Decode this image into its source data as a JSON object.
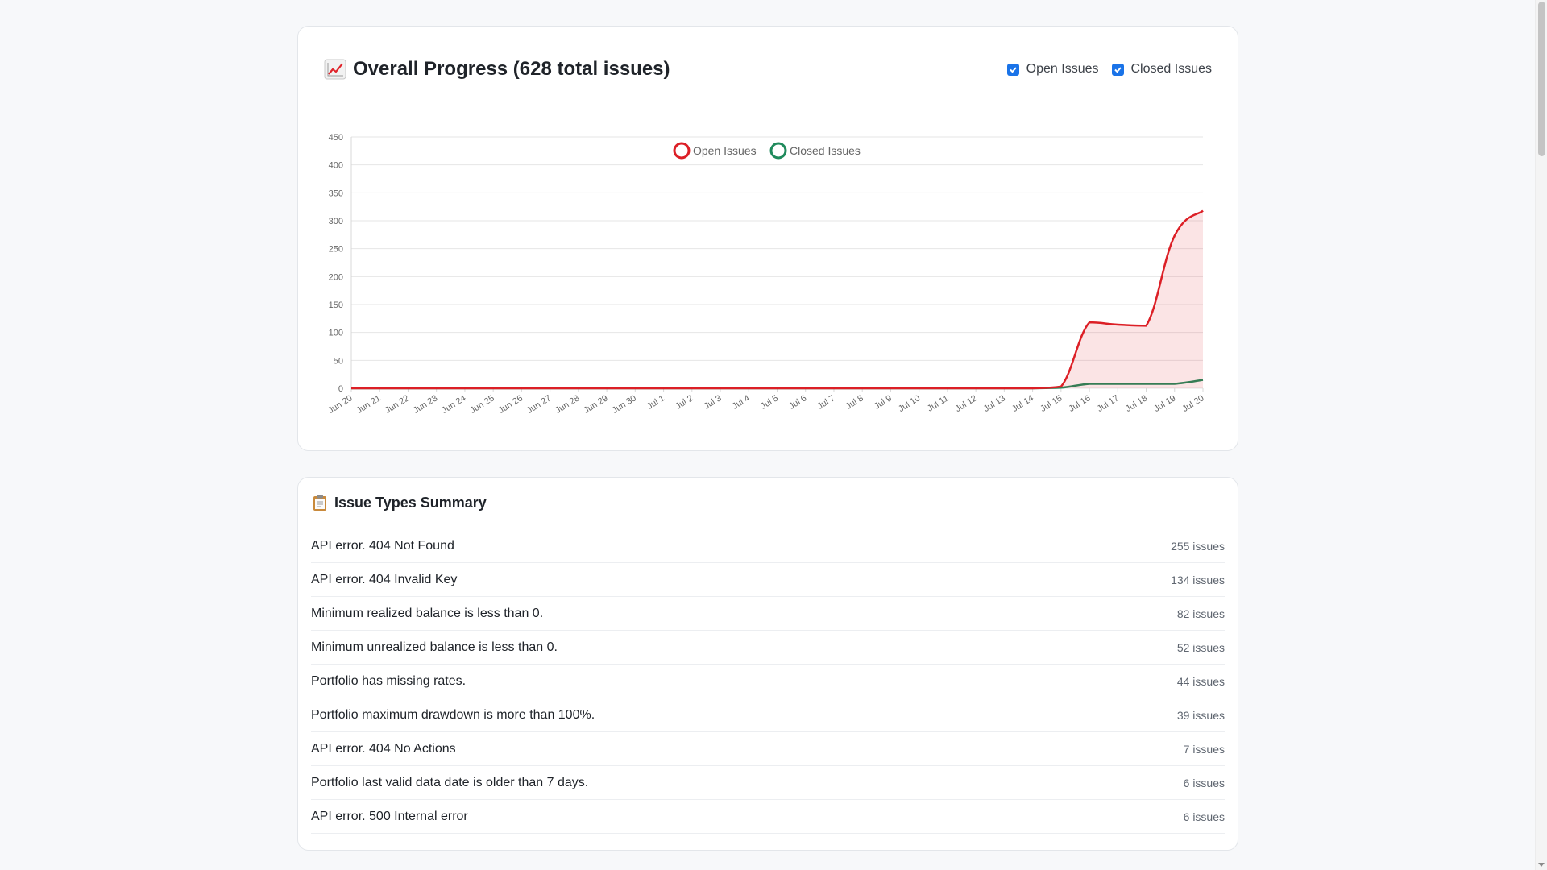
{
  "progress": {
    "title": "Overall Progress (628 total issues)",
    "title_icon": "chart-increasing-icon",
    "toggles": [
      {
        "label": "Open Issues",
        "checked": true
      },
      {
        "label": "Closed Issues",
        "checked": true
      }
    ]
  },
  "chart_data": {
    "type": "line",
    "title": "",
    "xlabel": "",
    "ylabel": "",
    "ylim": [
      0,
      450
    ],
    "yticks": [
      "0",
      "50",
      "100",
      "150",
      "200",
      "250",
      "300",
      "350",
      "400",
      "450"
    ],
    "grid": true,
    "legend_position": "top-center",
    "categories": [
      "Jun 20",
      "Jun 21",
      "Jun 22",
      "Jun 23",
      "Jun 24",
      "Jun 25",
      "Jun 26",
      "Jun 27",
      "Jun 28",
      "Jun 29",
      "Jun 30",
      "Jul 1",
      "Jul 2",
      "Jul 3",
      "Jul 4",
      "Jul 5",
      "Jul 6",
      "Jul 7",
      "Jul 8",
      "Jul 9",
      "Jul 10",
      "Jul 11",
      "Jul 12",
      "Jul 13",
      "Jul 14",
      "Jul 15",
      "Jul 16",
      "Jul 17",
      "Jul 18",
      "Jul 19",
      "Jul 20"
    ],
    "series": [
      {
        "name": "Open Issues",
        "color": "#dc1f26",
        "fill": "rgba(220,31,38,0.12)",
        "values": [
          0,
          0,
          0,
          0,
          0,
          0,
          0,
          0,
          0,
          0,
          0,
          0,
          0,
          0,
          0,
          0,
          0,
          0,
          0,
          0,
          0,
          0,
          0,
          0,
          0,
          3,
          118,
          114,
          112,
          273,
          318
        ]
      },
      {
        "name": "Closed Issues",
        "color": "#1f8a5c",
        "fill": "none",
        "values": [
          0,
          0,
          0,
          0,
          0,
          0,
          0,
          0,
          0,
          0,
          0,
          0,
          0,
          0,
          0,
          0,
          0,
          0,
          0,
          0,
          0,
          0,
          0,
          0,
          0,
          1,
          8,
          8,
          8,
          8,
          15
        ]
      }
    ]
  },
  "summary": {
    "title": "Issue Types Summary",
    "title_icon": "clipboard-icon",
    "items": [
      {
        "name": "API error. 404 Not Found",
        "count": "255 issues"
      },
      {
        "name": "API error. 404 Invalid Key",
        "count": "134 issues"
      },
      {
        "name": "Minimum realized balance is less than 0.",
        "count": "82 issues"
      },
      {
        "name": "Minimum unrealized balance is less than 0.",
        "count": "52 issues"
      },
      {
        "name": "Portfolio has missing rates.",
        "count": "44 issues"
      },
      {
        "name": "Portfolio maximum drawdown is more than 100%.",
        "count": "39 issues"
      },
      {
        "name": "API error. 404 No Actions",
        "count": "7 issues"
      },
      {
        "name": "Portfolio last valid data date is older than 7 days.",
        "count": "6 issues"
      },
      {
        "name": "API error. 500 Internal error",
        "count": "6 issues"
      }
    ]
  }
}
